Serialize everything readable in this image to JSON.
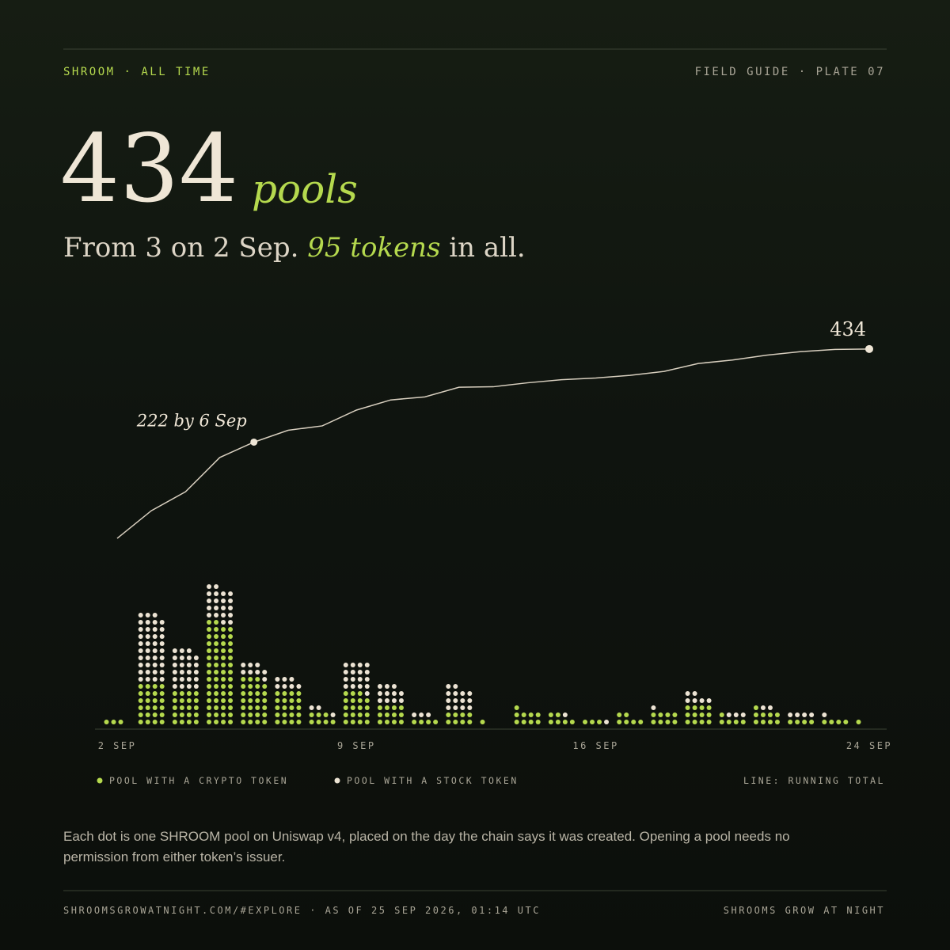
{
  "header": {
    "left": "SHROOM · ALL TIME",
    "right": "FIELD GUIDE · PLATE 07"
  },
  "headline": {
    "number": "434",
    "unit": "pools"
  },
  "subtitle": {
    "before": "From 3 on 2 Sep. ",
    "highlight": "95 tokens",
    "after": " in all."
  },
  "chart_data": {
    "type": "dot-stack",
    "categories": [
      "2 SEP",
      null,
      null,
      null,
      null,
      null,
      null,
      "9 SEP",
      null,
      null,
      null,
      null,
      null,
      null,
      "16 SEP",
      null,
      null,
      null,
      null,
      null,
      null,
      null,
      "24 SEP"
    ],
    "series": [
      {
        "name": "POOL WITH A CRYPTO TOKEN",
        "color": "#b5d94e",
        "values": [
          3,
          24,
          20,
          58,
          27,
          20,
          7,
          19,
          12,
          4,
          8,
          1,
          9,
          6,
          3,
          6,
          8,
          12,
          5,
          9,
          4,
          4,
          1
        ]
      },
      {
        "name": "POOL WITH A STOCK TOKEN",
        "color": "#ece3d3",
        "values": [
          0,
          39,
          23,
          20,
          8,
          7,
          3,
          17,
          11,
          3,
          14,
          0,
          0,
          1,
          1,
          0,
          1,
          6,
          3,
          2,
          4,
          1,
          0
        ]
      }
    ],
    "line": {
      "name": "LINE: RUNNING TOTAL",
      "color": "#d8cfbf",
      "annotation": "222 by 6 Sep",
      "annotation_index": 4,
      "end_label": "434"
    }
  },
  "description": "Each dot is one SHROOM pool on Uniswap v4, placed on the day the chain says it was created. Opening a pool needs no permission from either token’s issuer.",
  "footer": {
    "left": "SHROOMSGROWATNIGHT.COM/#EXPLORE · AS OF 25 SEP 2026, 01:14 UTC",
    "right": "SHROOMS GROW AT NIGHT"
  }
}
